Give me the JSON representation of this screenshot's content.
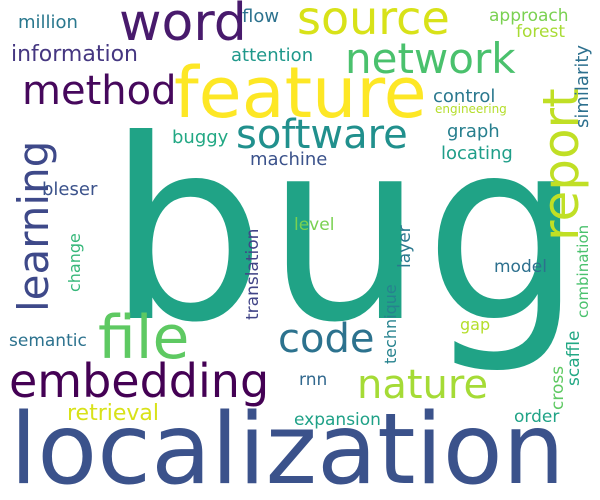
{
  "palette": {
    "background": "#ffffff",
    "deep_purple": "#440154",
    "indigo": "#472d7b",
    "blue": "#3b528b",
    "steel_blue": "#2c728e",
    "teal": "#21918c",
    "green_teal": "#28ae80",
    "green": "#5ec962",
    "lime": "#addc30",
    "yellow": "#fde725"
  },
  "words": [
    {
      "id": "bug",
      "text": "bug",
      "color": "#20a386"
    },
    {
      "id": "localization",
      "text": "localization",
      "color": "#3b528b"
    },
    {
      "id": "feature",
      "text": "feature",
      "color": "#fde725"
    },
    {
      "id": "word",
      "text": "word",
      "color": "#481a6c"
    },
    {
      "id": "source",
      "text": "source",
      "color": "#d8e219"
    },
    {
      "id": "network",
      "text": "network",
      "color": "#4ac16d"
    },
    {
      "id": "report",
      "text": "report",
      "color": "#c0df25"
    },
    {
      "id": "method",
      "text": "method",
      "color": "#46085c"
    },
    {
      "id": "software",
      "text": "software",
      "color": "#21908d"
    },
    {
      "id": "embedding",
      "text": "embedding",
      "color": "#440154"
    },
    {
      "id": "file",
      "text": "file",
      "color": "#5ec962"
    },
    {
      "id": "code",
      "text": "code",
      "color": "#2c728e"
    },
    {
      "id": "learning",
      "text": "learning",
      "color": "#3e4989"
    },
    {
      "id": "nature",
      "text": "nature",
      "color": "#a5db36"
    },
    {
      "id": "information",
      "text": "information",
      "color": "#453781"
    },
    {
      "id": "million",
      "text": "million",
      "color": "#2a788e"
    },
    {
      "id": "flow",
      "text": "flow",
      "color": "#2c728e"
    },
    {
      "id": "attention",
      "text": "attention",
      "color": "#1f988b"
    },
    {
      "id": "approach",
      "text": "approach",
      "color": "#7ad151"
    },
    {
      "id": "forest",
      "text": "forest",
      "color": "#a8db34"
    },
    {
      "id": "similarity",
      "text": "similarity",
      "color": "#2d708e"
    },
    {
      "id": "control",
      "text": "control",
      "color": "#2a788e"
    },
    {
      "id": "engineering",
      "text": "engineering",
      "color": "#b5de2b"
    },
    {
      "id": "buggy",
      "text": "buggy",
      "color": "#22a884"
    },
    {
      "id": "graph",
      "text": "graph",
      "color": "#277f8e"
    },
    {
      "id": "machine",
      "text": "machine",
      "color": "#3b528b"
    },
    {
      "id": "locating",
      "text": "locating",
      "color": "#1f9e89"
    },
    {
      "id": "bleser",
      "text": "bleser",
      "color": "#3b528b"
    },
    {
      "id": "change",
      "text": "change",
      "color": "#35b779"
    },
    {
      "id": "level",
      "text": "level",
      "color": "#7ad151"
    },
    {
      "id": "translation",
      "text": "translation",
      "color": "#414487"
    },
    {
      "id": "layer",
      "text": "layer",
      "color": "#2a788e"
    },
    {
      "id": "model",
      "text": "model",
      "color": "#2d708e"
    },
    {
      "id": "combination",
      "text": "combination",
      "color": "#4ac16d"
    },
    {
      "id": "technique",
      "text": "technique",
      "color": "#26828e"
    },
    {
      "id": "semantic",
      "text": "semantic",
      "color": "#2c728e"
    },
    {
      "id": "scaffle",
      "text": "scaffle",
      "color": "#22a884"
    },
    {
      "id": "gap",
      "text": "gap",
      "color": "#b5de2b"
    },
    {
      "id": "rnn",
      "text": "rnn",
      "color": "#31688e"
    },
    {
      "id": "cross",
      "text": "cross",
      "color": "#5ec962"
    },
    {
      "id": "retrieval",
      "text": "retrieval",
      "color": "#d8e219"
    },
    {
      "id": "expansion",
      "text": "expansion",
      "color": "#1fa187"
    },
    {
      "id": "order",
      "text": "order",
      "color": "#20a386"
    }
  ]
}
